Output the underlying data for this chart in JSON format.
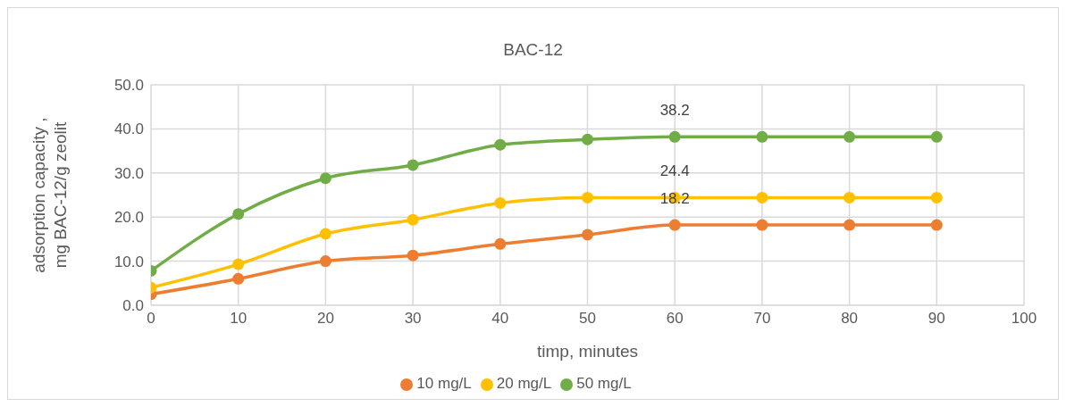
{
  "chart_data": {
    "type": "line",
    "title": "BAC-12",
    "xlabel": "timp, minutes",
    "ylabel": "adsorption capacity ,\nmg BAC-12/g zeolit",
    "x": [
      0,
      10,
      20,
      30,
      40,
      50,
      60,
      70,
      80,
      90
    ],
    "series": [
      {
        "name": "10 mg/L",
        "color": "#ed7d31",
        "values": [
          2.5,
          6.0,
          10.0,
          11.3,
          13.9,
          16.0,
          18.2,
          18.2,
          18.2,
          18.2
        ],
        "value_labels": [
          null,
          null,
          null,
          null,
          null,
          null,
          "18.2",
          null,
          null,
          null
        ]
      },
      {
        "name": "20 mg/L",
        "color": "#ffc000",
        "values": [
          4.0,
          9.3,
          16.2,
          19.4,
          23.2,
          24.4,
          24.4,
          24.4,
          24.4,
          24.4
        ],
        "value_labels": [
          null,
          null,
          null,
          null,
          null,
          null,
          "24.4",
          null,
          null,
          null
        ]
      },
      {
        "name": "50 mg/L",
        "color": "#70ad47",
        "values": [
          7.8,
          20.7,
          28.8,
          31.8,
          36.4,
          37.6,
          38.2,
          38.2,
          38.2,
          38.2
        ],
        "value_labels": [
          null,
          null,
          null,
          null,
          null,
          null,
          "38.2",
          null,
          null,
          null
        ]
      }
    ],
    "xlim": [
      0,
      100
    ],
    "xticks": [
      0,
      10,
      20,
      30,
      40,
      50,
      60,
      70,
      80,
      90,
      100
    ],
    "ylim": [
      0,
      50
    ],
    "yticks": [
      {
        "value": 0,
        "label": "0.0"
      },
      {
        "value": 10,
        "label": "10.0"
      },
      {
        "value": 20,
        "label": "20.0"
      },
      {
        "value": 30,
        "label": "30.0"
      },
      {
        "value": 40,
        "label": "40.0"
      },
      {
        "value": 50,
        "label": "50.0"
      }
    ],
    "grid": true,
    "legend": "bottom",
    "marker": "circle",
    "line_style": "solid"
  }
}
